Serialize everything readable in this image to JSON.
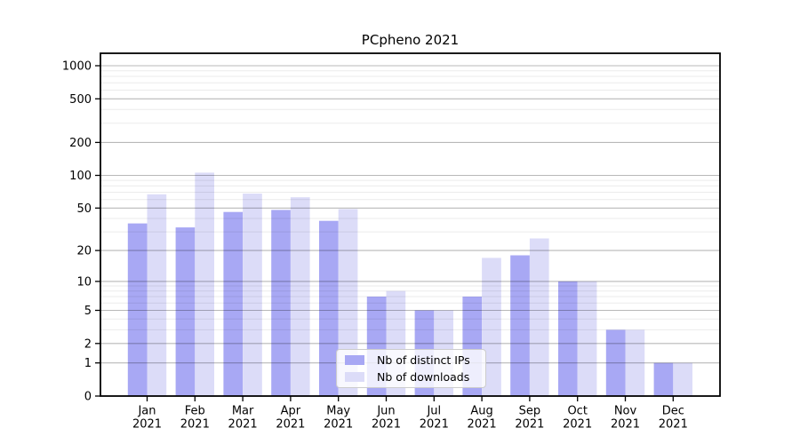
{
  "chart_data": {
    "type": "bar",
    "title": "PCpheno 2021",
    "categories": [
      "Jan",
      "Feb",
      "Mar",
      "Apr",
      "May",
      "Jun",
      "Jul",
      "Aug",
      "Sep",
      "Oct",
      "Nov",
      "Dec"
    ],
    "year_label": "2021",
    "series": [
      {
        "name": "Nb of distinct IPs",
        "color": "#a8a8f4",
        "values": [
          36,
          33,
          46,
          48,
          38,
          7,
          5,
          7,
          18,
          10,
          3,
          1
        ]
      },
      {
        "name": "Nb of downloads",
        "color": "#dcdcf8",
        "values": [
          67,
          106,
          68,
          63,
          49,
          8,
          5,
          17,
          26,
          10,
          3,
          1
        ]
      }
    ],
    "yticks": [
      0,
      1,
      2,
      5,
      10,
      20,
      50,
      100,
      200,
      500,
      1000
    ],
    "scale": "log(value+1)",
    "ylim": [
      0,
      1300
    ],
    "xlabel": "",
    "ylabel": "",
    "grid": "on",
    "legend_position": "lower center"
  },
  "colors": {
    "background": "#ffffff",
    "frame": "#000000",
    "grid_major": "rgba(0,0,0,0.28)",
    "grid_minor": "rgba(0,0,0,0.08)",
    "text": "#000000",
    "legend_border": "#cccccc",
    "legend_bg": "rgba(255,255,255,0.8)"
  }
}
